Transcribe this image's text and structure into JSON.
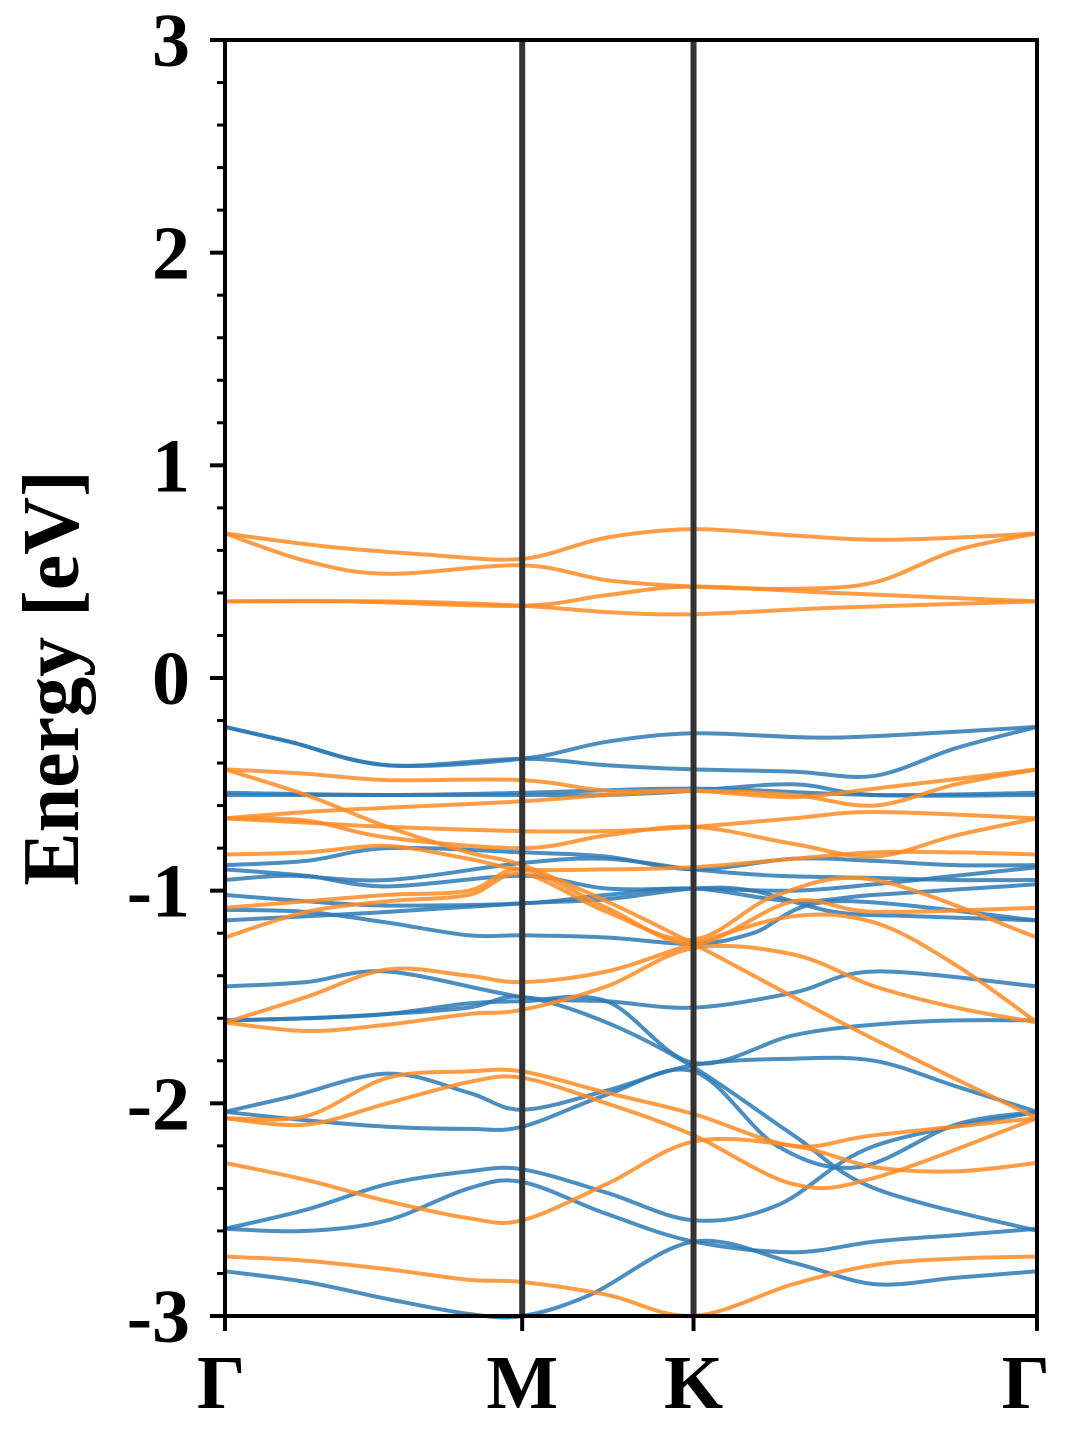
{
  "chart_data": {
    "type": "line",
    "title": "",
    "xlabel": "",
    "ylabel": "Energy [eV]",
    "ylim": [
      -3,
      3
    ],
    "xlim": [
      0,
      1
    ],
    "x_ticks": [
      {
        "label": "Γ",
        "x": 0.0
      },
      {
        "label": "M",
        "x": 0.366
      },
      {
        "label": "K",
        "x": 0.577
      },
      {
        "label": "Γ",
        "x": 1.0
      }
    ],
    "y_ticks": [
      {
        "label": "3",
        "value": 3
      },
      {
        "label": "2",
        "value": 2
      },
      {
        "label": "1",
        "value": 1
      },
      {
        "label": "0",
        "value": 0
      },
      {
        "label": "-1",
        "value": -1
      },
      {
        "label": "-2",
        "value": -2
      },
      {
        "label": "-3",
        "value": -3
      }
    ],
    "minor_y_step": 0.2,
    "high_symmetry_lines": [
      0.366,
      0.577
    ],
    "grid": false,
    "legend": false,
    "colors": {
      "spin_up": "#2e7ab5",
      "spin_down": "#ff8c26",
      "hs_line": "#333333"
    },
    "series": [
      {
        "group": "spin_up",
        "x": [
          0,
          0.08,
          0.2,
          0.366,
          0.47,
          0.577,
          0.72,
          0.82,
          1
        ],
        "y": [
          -0.23,
          -0.3,
          -0.41,
          -0.38,
          -0.3,
          -0.26,
          -0.28,
          -0.27,
          -0.23
        ]
      },
      {
        "group": "spin_up",
        "x": [
          0,
          0.08,
          0.2,
          0.366,
          0.47,
          0.577,
          0.7,
          0.8,
          0.9,
          1
        ],
        "y": [
          -0.23,
          -0.3,
          -0.41,
          -0.38,
          -0.41,
          -0.43,
          -0.44,
          -0.46,
          -0.33,
          -0.23
        ]
      },
      {
        "group": "spin_up",
        "x": [
          0,
          0.2,
          0.366,
          0.577,
          0.8,
          1
        ],
        "y": [
          -0.54,
          -0.55,
          -0.54,
          -0.52,
          -0.55,
          -0.54
        ]
      },
      {
        "group": "spin_up",
        "x": [
          0,
          0.366,
          0.47,
          0.577,
          0.7,
          0.8,
          1
        ],
        "y": [
          -0.55,
          -0.55,
          -0.55,
          -0.53,
          -0.5,
          -0.55,
          -0.55
        ]
      },
      {
        "group": "spin_up",
        "x": [
          0,
          0.1,
          0.2,
          0.366,
          0.47,
          0.577,
          0.7,
          0.8,
          0.9,
          1
        ],
        "y": [
          -0.88,
          -0.86,
          -0.8,
          -0.82,
          -0.84,
          -0.9,
          -0.85,
          -0.86,
          -0.88,
          -0.88
        ]
      },
      {
        "group": "spin_up",
        "x": [
          0,
          0.08,
          0.2,
          0.366,
          0.47,
          0.577,
          0.68,
          0.8,
          0.9,
          1
        ],
        "y": [
          -0.95,
          -0.93,
          -0.95,
          -0.87,
          -0.85,
          -0.9,
          -0.93,
          -0.94,
          -0.95,
          -0.95
        ]
      },
      {
        "group": "spin_up",
        "x": [
          0,
          0.1,
          0.2,
          0.366,
          0.47,
          0.577,
          0.7,
          0.8,
          0.9,
          1
        ],
        "y": [
          -0.9,
          -0.93,
          -0.98,
          -0.93,
          -0.99,
          -0.99,
          -1.0,
          -0.97,
          -0.93,
          -0.89
        ]
      },
      {
        "group": "spin_up",
        "x": [
          0,
          0.1,
          0.2,
          0.366,
          0.47,
          0.577,
          0.7,
          0.8,
          1
        ],
        "y": [
          -1.02,
          -1.05,
          -1.07,
          -1.06,
          -1.02,
          -0.99,
          -1.05,
          -1.02,
          -0.97
        ]
      },
      {
        "group": "spin_up",
        "x": [
          0,
          0.1,
          0.2,
          0.366,
          0.47,
          0.577,
          0.65,
          0.75,
          0.85,
          1
        ],
        "y": [
          -1.14,
          -1.12,
          -1.1,
          -1.06,
          -1.04,
          -0.99,
          -1.0,
          -1.1,
          -1.12,
          -1.14
        ]
      },
      {
        "group": "spin_up",
        "x": [
          0,
          0.1,
          0.2,
          0.3,
          0.366,
          0.47,
          0.577,
          0.65,
          0.75,
          1
        ],
        "y": [
          -1.09,
          -1.1,
          -1.15,
          -1.21,
          -1.21,
          -1.22,
          -1.25,
          -1.2,
          -1.05,
          -1.14
        ]
      },
      {
        "group": "spin_up",
        "x": [
          0,
          0.1,
          0.2,
          0.366,
          0.47,
          0.577,
          0.7,
          0.8,
          1
        ],
        "y": [
          -1.45,
          -1.43,
          -1.38,
          -1.5,
          -1.52,
          -1.55,
          -1.48,
          -1.38,
          -1.45
        ]
      },
      {
        "group": "spin_up",
        "x": [
          0,
          0.1,
          0.2,
          0.3,
          0.366,
          0.47,
          0.577,
          0.7,
          0.8,
          0.9,
          1
        ],
        "y": [
          -1.61,
          -1.6,
          -1.58,
          -1.53,
          -1.52,
          -1.52,
          -1.81,
          -1.68,
          -1.63,
          -1.61,
          -1.61
        ]
      },
      {
        "group": "spin_up",
        "x": [
          0,
          0.1,
          0.2,
          0.3,
          0.366,
          0.47,
          0.577,
          0.7,
          0.8,
          1
        ],
        "y": [
          -1.61,
          -1.6,
          -1.58,
          -1.55,
          -1.5,
          -1.62,
          -1.83,
          -2.15,
          -2.4,
          -2.6
        ]
      },
      {
        "group": "spin_up",
        "x": [
          0,
          0.08,
          0.2,
          0.3,
          0.366,
          0.47,
          0.577,
          0.7,
          0.8,
          0.9,
          1
        ],
        "y": [
          -2.04,
          -1.97,
          -1.86,
          -1.95,
          -2.03,
          -1.94,
          -1.82,
          -1.79,
          -1.8,
          -1.92,
          -2.04
        ]
      },
      {
        "group": "spin_up",
        "x": [
          0,
          0.1,
          0.2,
          0.3,
          0.366,
          0.47,
          0.577,
          0.68,
          0.78,
          0.9,
          1
        ],
        "y": [
          -2.04,
          -2.08,
          -2.11,
          -2.12,
          -2.11,
          -1.96,
          -1.85,
          -2.2,
          -2.3,
          -2.1,
          -2.04
        ]
      },
      {
        "group": "spin_up",
        "x": [
          0,
          0.1,
          0.2,
          0.3,
          0.366,
          0.47,
          0.577,
          0.68,
          0.8,
          1
        ],
        "y": [
          -2.59,
          -2.5,
          -2.38,
          -2.32,
          -2.31,
          -2.42,
          -2.55,
          -2.48,
          -2.2,
          -2.04
        ]
      },
      {
        "group": "spin_up",
        "x": [
          0,
          0.1,
          0.2,
          0.3,
          0.366,
          0.47,
          0.577,
          0.7,
          0.8,
          0.9,
          1
        ],
        "y": [
          -2.59,
          -2.6,
          -2.55,
          -2.4,
          -2.37,
          -2.52,
          -2.65,
          -2.7,
          -2.65,
          -2.62,
          -2.59
        ]
      },
      {
        "group": "spin_up",
        "x": [
          0,
          0.1,
          0.2,
          0.3,
          0.366,
          0.45,
          0.577,
          0.7,
          0.8,
          0.9,
          1
        ],
        "y": [
          -2.79,
          -2.84,
          -2.92,
          -2.99,
          -3.0,
          -2.9,
          -2.65,
          -2.75,
          -2.85,
          -2.82,
          -2.79
        ]
      },
      {
        "group": "spin_down",
        "x": [
          0,
          0.12,
          0.25,
          0.366,
          0.47,
          0.577,
          0.7,
          0.8,
          0.9,
          1
        ],
        "y": [
          0.68,
          0.62,
          0.58,
          0.56,
          0.66,
          0.7,
          0.67,
          0.65,
          0.66,
          0.68
        ]
      },
      {
        "group": "spin_down",
        "x": [
          0,
          0.1,
          0.2,
          0.366,
          0.47,
          0.577,
          0.7,
          0.8,
          0.9,
          1
        ],
        "y": [
          0.68,
          0.55,
          0.49,
          0.53,
          0.46,
          0.43,
          0.42,
          0.45,
          0.6,
          0.68
        ]
      },
      {
        "group": "spin_down",
        "x": [
          0,
          0.15,
          0.366,
          0.47,
          0.577,
          0.75,
          1
        ],
        "y": [
          0.36,
          0.36,
          0.34,
          0.39,
          0.43,
          0.4,
          0.36
        ]
      },
      {
        "group": "spin_down",
        "x": [
          0,
          0.2,
          0.366,
          0.47,
          0.577,
          0.75,
          1
        ],
        "y": [
          0.36,
          0.36,
          0.34,
          0.31,
          0.3,
          0.33,
          0.36
        ]
      },
      {
        "group": "spin_down",
        "x": [
          0,
          0.1,
          0.2,
          0.366,
          0.47,
          0.577,
          0.7,
          0.8,
          1
        ],
        "y": [
          -0.43,
          -0.45,
          -0.48,
          -0.48,
          -0.53,
          -0.53,
          -0.56,
          -0.52,
          -0.43
        ]
      },
      {
        "group": "spin_down",
        "x": [
          0,
          0.1,
          0.2,
          0.3,
          0.366,
          0.47,
          0.577,
          0.7,
          0.8,
          1
        ],
        "y": [
          -0.43,
          -0.55,
          -0.7,
          -0.82,
          -0.88,
          -1.05,
          -1.25,
          -1.5,
          -1.7,
          -2.07
        ]
      },
      {
        "group": "spin_down",
        "x": [
          0,
          0.1,
          0.2,
          0.366,
          0.47,
          0.577,
          0.7,
          0.8,
          0.9,
          1
        ],
        "y": [
          -0.66,
          -0.63,
          -0.61,
          -0.58,
          -0.55,
          -0.53,
          -0.55,
          -0.6,
          -0.5,
          -0.43
        ]
      },
      {
        "group": "spin_down",
        "x": [
          0,
          0.1,
          0.2,
          0.366,
          0.47,
          0.577,
          0.7,
          0.8,
          1
        ],
        "y": [
          -0.66,
          -0.68,
          -0.7,
          -0.72,
          -0.72,
          -0.7,
          -0.66,
          -0.63,
          -0.66
        ]
      },
      {
        "group": "spin_down",
        "x": [
          0,
          0.1,
          0.2,
          0.366,
          0.47,
          0.577,
          0.7,
          0.8,
          0.9,
          1
        ],
        "y": [
          -0.66,
          -0.67,
          -0.75,
          -0.8,
          -0.74,
          -0.7,
          -0.78,
          -0.84,
          -0.74,
          -0.66
        ]
      },
      {
        "group": "spin_down",
        "x": [
          0,
          0.1,
          0.2,
          0.3,
          0.366,
          0.47,
          0.577,
          0.7,
          0.8,
          0.9,
          1
        ],
        "y": [
          -0.83,
          -0.82,
          -0.79,
          -0.85,
          -0.9,
          -0.9,
          -0.89,
          -0.85,
          -0.82,
          -0.82,
          -0.83
        ]
      },
      {
        "group": "spin_down",
        "x": [
          0,
          0.1,
          0.2,
          0.3,
          0.366,
          0.47,
          0.577,
          0.7,
          0.8,
          1
        ],
        "y": [
          -1.08,
          -1.05,
          -1.02,
          -1.0,
          -0.9,
          -1.08,
          -1.25,
          -1.05,
          -1.1,
          -1.08
        ]
      },
      {
        "group": "spin_down",
        "x": [
          0,
          0.1,
          0.2,
          0.3,
          0.366,
          0.47,
          0.577,
          0.68,
          0.8,
          1
        ],
        "y": [
          -1.22,
          -1.1,
          -1.05,
          -1.02,
          -0.92,
          -1.1,
          -1.23,
          -1.02,
          -0.95,
          -1.22
        ]
      },
      {
        "group": "spin_down",
        "x": [
          0,
          0.1,
          0.2,
          0.3,
          0.366,
          0.47,
          0.577,
          0.7,
          0.8,
          0.9,
          1
        ],
        "y": [
          -1.62,
          -1.5,
          -1.37,
          -1.4,
          -1.43,
          -1.38,
          -1.25,
          -1.12,
          -1.15,
          -1.35,
          -1.62
        ]
      },
      {
        "group": "spin_down",
        "x": [
          0,
          0.1,
          0.2,
          0.3,
          0.366,
          0.47,
          0.577,
          0.7,
          0.8,
          0.9,
          1
        ],
        "y": [
          -1.62,
          -1.66,
          -1.63,
          -1.58,
          -1.56,
          -1.45,
          -1.27,
          -1.3,
          -1.45,
          -1.55,
          -1.62
        ]
      },
      {
        "group": "spin_down",
        "x": [
          0,
          0.1,
          0.2,
          0.3,
          0.366,
          0.47,
          0.577,
          0.7,
          0.8,
          1
        ],
        "y": [
          -2.07,
          -2.06,
          -1.88,
          -1.85,
          -1.85,
          -1.95,
          -2.05,
          -2.2,
          -2.15,
          -2.07
        ]
      },
      {
        "group": "spin_down",
        "x": [
          0,
          0.1,
          0.2,
          0.3,
          0.366,
          0.47,
          0.577,
          0.7,
          0.8,
          1
        ],
        "y": [
          -2.07,
          -2.1,
          -2.0,
          -1.9,
          -1.88,
          -2.0,
          -2.15,
          -2.38,
          -2.35,
          -2.07
        ]
      },
      {
        "group": "spin_down",
        "x": [
          0,
          0.1,
          0.2,
          0.3,
          0.366,
          0.47,
          0.577,
          0.7,
          0.8,
          0.9,
          1
        ],
        "y": [
          -2.28,
          -2.36,
          -2.46,
          -2.54,
          -2.55,
          -2.38,
          -2.18,
          -2.2,
          -2.3,
          -2.32,
          -2.28
        ]
      },
      {
        "group": "spin_down",
        "x": [
          0,
          0.1,
          0.2,
          0.3,
          0.366,
          0.47,
          0.577,
          0.7,
          0.8,
          0.9,
          1
        ],
        "y": [
          -2.72,
          -2.74,
          -2.78,
          -2.83,
          -2.84,
          -2.9,
          -3.0,
          -2.85,
          -2.76,
          -2.73,
          -2.72
        ]
      }
    ]
  }
}
